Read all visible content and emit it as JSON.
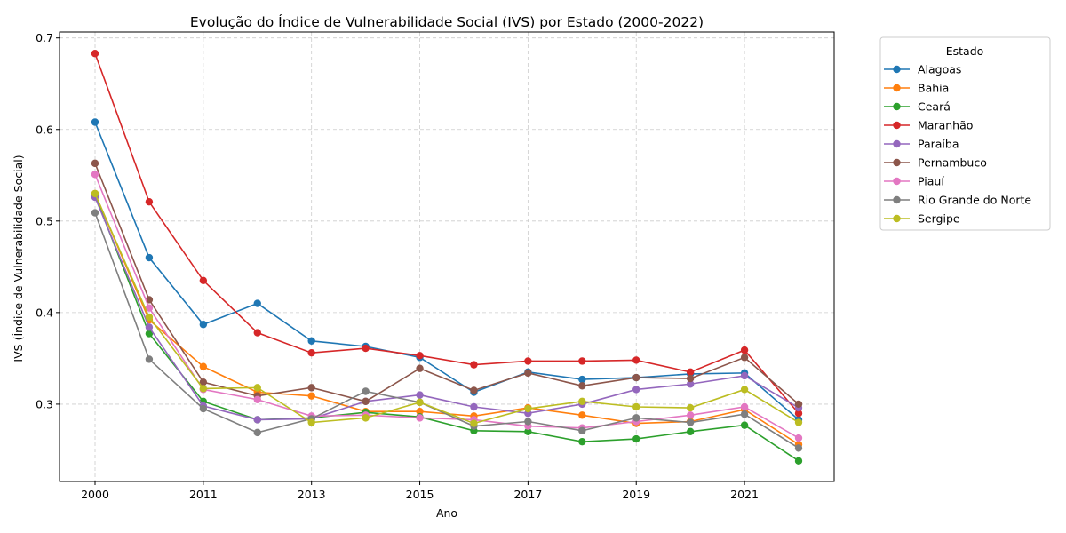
{
  "chart_data": {
    "type": "line",
    "title": "Evolução do Índice de Vulnerabilidade Social (IVS) por Estado (2000-2022)",
    "xlabel": "Ano",
    "ylabel": "IVS (Índice de Vulnerabilidade Social)",
    "x": [
      2000,
      2010,
      2011,
      2012,
      2013,
      2014,
      2015,
      2016,
      2017,
      2018,
      2019,
      2020,
      2021,
      2022
    ],
    "x_tick_labels": [
      "2000",
      "2011",
      "2013",
      "2015",
      "2017",
      "2019",
      "2021"
    ],
    "x_tick_values": [
      2000,
      2011,
      2013,
      2015,
      2017,
      2019,
      2021
    ],
    "y_ticks": [
      "0.3",
      "0.4",
      "0.5",
      "0.6",
      "0.7"
    ],
    "y_tick_values": [
      0.3,
      0.4,
      0.5,
      0.6,
      0.7
    ],
    "ylim": [
      0.2155,
      0.7065
    ],
    "grid": true,
    "legend_title": "Estado",
    "legend_position": "outside-right",
    "series": [
      {
        "name": "Alagoas",
        "color": "#1f77b4",
        "values": [
          0.608,
          0.46,
          0.387,
          0.41,
          0.369,
          0.363,
          0.351,
          0.313,
          0.335,
          0.327,
          0.329,
          0.333,
          0.334,
          0.283
        ]
      },
      {
        "name": "Bahia",
        "color": "#ff7f0e",
        "values": [
          0.53,
          0.392,
          0.341,
          0.313,
          0.309,
          0.292,
          0.292,
          0.287,
          0.296,
          0.288,
          0.279,
          0.281,
          0.294,
          0.256
        ]
      },
      {
        "name": "Ceará",
        "color": "#2ca02c",
        "values": [
          0.528,
          0.377,
          0.303,
          0.283,
          0.285,
          0.291,
          0.286,
          0.271,
          0.27,
          0.259,
          0.262,
          0.27,
          0.277,
          0.238
        ]
      },
      {
        "name": "Maranhão",
        "color": "#d62728",
        "values": [
          0.683,
          0.521,
          0.435,
          0.378,
          0.356,
          0.361,
          0.353,
          0.343,
          0.347,
          0.347,
          0.348,
          0.335,
          0.359,
          0.29
        ]
      },
      {
        "name": "Paraíba",
        "color": "#9467bd",
        "values": [
          0.526,
          0.384,
          0.298,
          0.283,
          0.284,
          0.303,
          0.31,
          0.297,
          0.29,
          0.3,
          0.316,
          0.322,
          0.331,
          0.296
        ]
      },
      {
        "name": "Pernambuco",
        "color": "#8c564b",
        "values": [
          0.563,
          0.414,
          0.324,
          0.309,
          0.318,
          0.303,
          0.339,
          0.315,
          0.334,
          0.32,
          0.329,
          0.328,
          0.351,
          0.3
        ]
      },
      {
        "name": "Piauí",
        "color": "#e377c2",
        "values": [
          0.551,
          0.405,
          0.316,
          0.305,
          0.287,
          0.288,
          0.285,
          0.283,
          0.276,
          0.274,
          0.281,
          0.288,
          0.297,
          0.263
        ]
      },
      {
        "name": "Rio Grande do Norte",
        "color": "#7f7f7f",
        "values": [
          0.509,
          0.349,
          0.295,
          0.269,
          0.284,
          0.314,
          0.302,
          0.276,
          0.281,
          0.271,
          0.285,
          0.28,
          0.289,
          0.252
        ]
      },
      {
        "name": "Sergipe",
        "color": "#bcbd22",
        "values": [
          0.53,
          0.395,
          0.317,
          0.318,
          0.28,
          0.285,
          0.302,
          0.279,
          0.295,
          0.303,
          0.297,
          0.296,
          0.316,
          0.28
        ]
      }
    ]
  }
}
